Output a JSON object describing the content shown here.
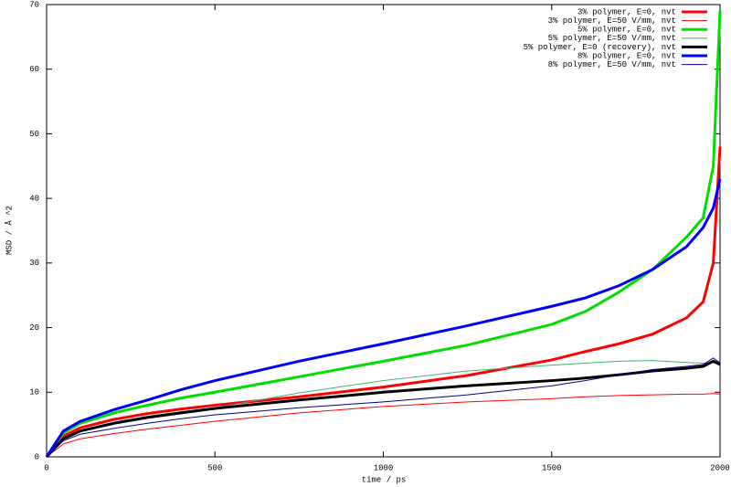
{
  "chart_data": {
    "type": "line",
    "x_label": "time / ps",
    "y_label": "MSD / Å ^2",
    "x": [
      0,
      50,
      100,
      200,
      300,
      400,
      500,
      750,
      1000,
      1250,
      1500,
      1600,
      1700,
      1800,
      1900,
      1950,
      1980,
      2000
    ],
    "xlim": [
      0,
      2000
    ],
    "xticks": [
      0,
      500,
      1000,
      1500,
      2000
    ],
    "ylim": [
      0,
      70
    ],
    "yticks": [
      0,
      10,
      20,
      30,
      40,
      50,
      60,
      70
    ],
    "grid": false,
    "legend": "top-right",
    "series": [
      {
        "name": "3% polymer, E=0, nvt",
        "color": "#ff0000",
        "width": 3,
        "values": [
          0,
          3.2,
          4.5,
          5.8,
          6.7,
          7.4,
          8,
          9.3,
          10.8,
          12.6,
          15,
          16.3,
          17.5,
          19,
          21.5,
          24,
          30,
          48
        ]
      },
      {
        "name": "3% polymer, E=50 V/mm, nvt",
        "color": "#ff0000",
        "width": 1,
        "values": [
          0,
          2,
          2.8,
          3.6,
          4.3,
          4.9,
          5.5,
          6.8,
          7.8,
          8.5,
          9,
          9.3,
          9.5,
          9.6,
          9.7,
          9.7,
          9.8,
          9.7
        ]
      },
      {
        "name": "5% polymer, E=0, nvt",
        "color": "#00dd00",
        "width": 3,
        "values": [
          0,
          3.7,
          5.2,
          6.8,
          8,
          9.1,
          10,
          12.4,
          14.8,
          17.3,
          20.5,
          22.5,
          25.5,
          29,
          34,
          37,
          45,
          69
        ]
      },
      {
        "name": "5% polymer, E=50 V/mm, nvt",
        "color": "#3cb371",
        "width": 1,
        "values": [
          0,
          2.8,
          4,
          5.3,
          6.3,
          7,
          7.6,
          9.9,
          11.8,
          13.3,
          14.2,
          14.5,
          14.8,
          14.9,
          14.6,
          14.5,
          14.6,
          14.8
        ]
      },
      {
        "name": "5% polymer, E=0 (recovery), nvt",
        "color": "#000000",
        "width": 3,
        "values": [
          0,
          2.8,
          4,
          5.2,
          6.1,
          6.8,
          7.5,
          8.8,
          10,
          11,
          11.8,
          12.2,
          12.7,
          13.3,
          13.7,
          14,
          14.8,
          14.3
        ]
      },
      {
        "name": "8% polymer, E=0, nvt",
        "color": "#0000ff",
        "width": 3,
        "values": [
          0,
          4,
          5.5,
          7.3,
          8.8,
          10.4,
          11.8,
          14.8,
          17.5,
          20.3,
          23.3,
          24.6,
          26.5,
          29,
          32.5,
          35.5,
          38.5,
          43
        ]
      },
      {
        "name": "8% polymer, E=50 V/mm, nvt",
        "color": "#000080",
        "width": 1,
        "values": [
          0,
          2.5,
          3.5,
          4.4,
          5.2,
          5.9,
          6.5,
          7.6,
          8.5,
          9.6,
          11,
          11.8,
          12.7,
          13.5,
          14,
          14.3,
          15.3,
          14.5
        ]
      }
    ]
  }
}
